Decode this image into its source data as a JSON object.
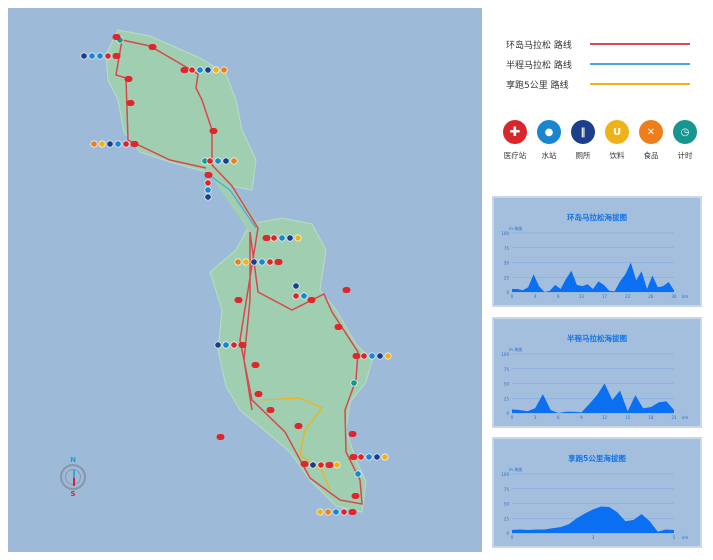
{
  "legend": {
    "routes": [
      {
        "label": "环岛马拉松 路线",
        "color": "#d9474f"
      },
      {
        "label": "半程马拉松 路线",
        "color": "#4aa6e0"
      },
      {
        "label": "享跑5公里 路线",
        "color": "#f0b21a"
      }
    ],
    "facilities": [
      {
        "label": "医疗站",
        "icon": "medical-cross-icon",
        "color": "#d9262b",
        "glyph": "✚"
      },
      {
        "label": "水站",
        "icon": "water-drop-icon",
        "color": "#1a86d0",
        "glyph": "💧"
      },
      {
        "label": "厕所",
        "icon": "toilet-icon",
        "color": "#1c3f8c",
        "glyph": "🚻"
      },
      {
        "label": "饮料",
        "icon": "drink-cup-icon",
        "color": "#f0b21a",
        "glyph": "🥤"
      },
      {
        "label": "食品",
        "icon": "food-utensils-icon",
        "color": "#ec7f1b",
        "glyph": "✕"
      },
      {
        "label": "计时",
        "icon": "timer-icon",
        "color": "#16968f",
        "glyph": "⏱"
      }
    ]
  },
  "compass": {
    "north": "N",
    "south": "S"
  },
  "chart_data": [
    {
      "type": "area",
      "title": "环岛马拉松海拔图",
      "ylabel": "m 海拔",
      "xlabel": "km",
      "ylim": [
        0,
        100
      ],
      "yticks": [
        0,
        25,
        50,
        75,
        100
      ],
      "xticks": [
        "0",
        "4",
        "9",
        "13",
        "17",
        "22",
        "26",
        "30"
      ],
      "xlim": [
        0,
        30
      ],
      "grid": true,
      "color": "#0a6ff0",
      "x": [
        0,
        1,
        2,
        3,
        4,
        5,
        6,
        7,
        8,
        9,
        10,
        11,
        12,
        13,
        14,
        15,
        16,
        17,
        18,
        19,
        20,
        21,
        22,
        23,
        24,
        25,
        26,
        27,
        28,
        29,
        30
      ],
      "values": [
        5,
        5,
        3,
        8,
        30,
        10,
        0,
        2,
        12,
        5,
        22,
        36,
        12,
        10,
        13,
        5,
        18,
        12,
        2,
        1,
        18,
        30,
        50,
        20,
        35,
        5,
        28,
        8,
        10,
        17,
        3
      ]
    },
    {
      "type": "area",
      "title": "半程马拉松海拔图",
      "ylabel": "m 海拔",
      "xlabel": "km",
      "ylim": [
        0,
        100
      ],
      "yticks": [
        0,
        25,
        50,
        75,
        100
      ],
      "xticks": [
        "0",
        "3",
        "6",
        "9",
        "12",
        "15",
        "18",
        "21"
      ],
      "xlim": [
        0,
        21
      ],
      "grid": true,
      "color": "#0a6ff0",
      "x": [
        0,
        1,
        2,
        3,
        4,
        5,
        6,
        7,
        8,
        9,
        10,
        11,
        12,
        13,
        14,
        15,
        16,
        17,
        18,
        19,
        20,
        21
      ],
      "values": [
        6,
        5,
        3,
        8,
        32,
        5,
        0,
        2,
        2,
        1,
        15,
        30,
        50,
        22,
        38,
        3,
        30,
        8,
        10,
        18,
        20,
        5
      ]
    },
    {
      "type": "area",
      "title": "享跑5公里海拔图",
      "ylabel": "m 海拔",
      "xlabel": "km",
      "ylim": [
        0,
        100
      ],
      "yticks": [
        0,
        25,
        50,
        75,
        100
      ],
      "xticks": [
        "0",
        "3",
        "5"
      ],
      "xlim": [
        0,
        5
      ],
      "grid": true,
      "color": "#0a6ff0",
      "x": [
        0,
        0.25,
        0.5,
        0.75,
        1,
        1.25,
        1.5,
        1.75,
        2,
        2.25,
        2.5,
        2.75,
        3,
        3.25,
        3.5,
        3.75,
        4,
        4.25,
        4.5,
        4.75,
        5
      ],
      "values": [
        5,
        6,
        5,
        6,
        6,
        8,
        10,
        15,
        25,
        33,
        40,
        45,
        44,
        35,
        20,
        22,
        32,
        20,
        2,
        6,
        5
      ]
    }
  ]
}
